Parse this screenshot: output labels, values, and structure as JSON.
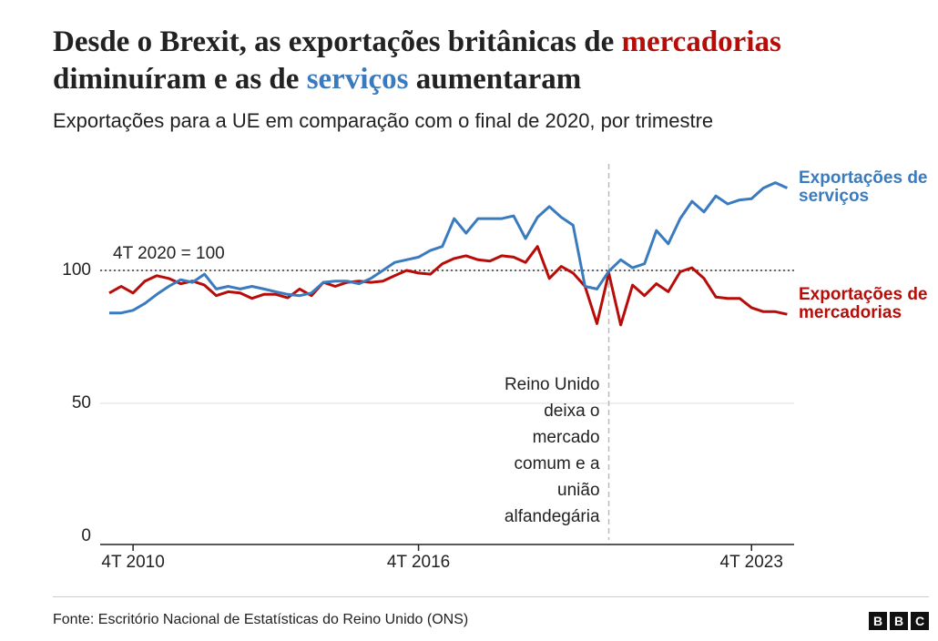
{
  "chart_data": {
    "type": "line",
    "title": [
      "Desde o Brexit, as exportações britânicas de",
      "mercadorias",
      "diminuíram e as de",
      "serviços",
      "aumentaram"
    ],
    "subtitle": "Exportações para a UE em comparação com o final de 2020, por trimestre",
    "source": "Fonte: Escritório Nacional de Estatísticas do Reino Unido (ONS)",
    "logo": [
      "B",
      "B",
      "C"
    ],
    "categories": [
      null,
      null,
      "4T 2010",
      null,
      null,
      null,
      null,
      null,
      null,
      null,
      null,
      null,
      null,
      null,
      null,
      null,
      null,
      null,
      null,
      null,
      null,
      null,
      null,
      null,
      null,
      null,
      "4T 2016",
      null,
      null,
      null,
      null,
      null,
      null,
      null,
      null,
      null,
      null,
      null,
      null,
      null,
      null,
      null,
      null,
      null,
      null,
      null,
      null,
      null,
      null,
      null,
      null,
      null,
      null,
      null,
      "4T 2023",
      null,
      null,
      null
    ],
    "series": [
      {
        "name": "Exportações de serviços",
        "color": "#3a7bbf",
        "values": [
          84,
          84,
          85,
          87.6,
          91,
          94,
          96.5,
          95.5,
          98.6,
          93,
          94,
          93,
          94,
          93,
          92,
          91,
          90.5,
          91.5,
          95.5,
          96,
          96,
          95,
          97,
          100,
          103,
          104,
          105,
          107.5,
          109,
          119.5,
          114,
          119.5,
          119.5,
          119.5,
          120.5,
          112,
          120,
          124,
          120,
          117,
          94,
          93,
          99.7,
          104,
          101,
          102.5,
          115,
          110,
          119.5,
          126,
          122,
          128,
          125,
          126.5,
          127,
          131,
          133,
          131
        ]
      },
      {
        "name": "Exportações de mercadorias",
        "color": "#b80c09",
        "values": [
          91.5,
          94,
          91.5,
          96,
          98,
          97,
          95,
          96,
          94.5,
          90.5,
          92,
          91.5,
          89.5,
          91,
          91,
          89.7,
          93,
          90.5,
          95.5,
          94,
          95.5,
          96,
          95.5,
          96,
          98,
          100,
          99,
          98.6,
          102.5,
          104.5,
          105.5,
          104,
          103.5,
          105.5,
          105,
          103,
          109,
          97,
          101.5,
          99,
          94,
          80,
          99,
          79.5,
          94.5,
          90.5,
          95,
          92,
          99.5,
          101,
          97,
          90,
          89.5,
          89.5,
          86,
          84.5,
          84.5,
          83.5
        ]
      }
    ],
    "ylim": [
      0,
      140
    ],
    "yticks": [
      0,
      50,
      100
    ],
    "grid": true,
    "reference_line": {
      "value": 100,
      "label": "4T 2020 = 100"
    },
    "vline": {
      "index": 42,
      "label": [
        "Reino Unido",
        "deixa o",
        "mercado",
        "comum e a",
        "união",
        "alfandegária"
      ]
    }
  }
}
